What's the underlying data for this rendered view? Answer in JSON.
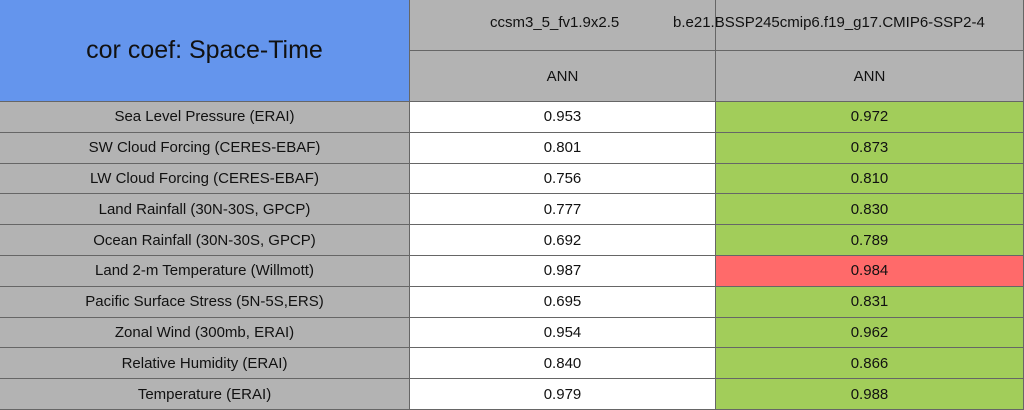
{
  "header": {
    "title": "cor coef: Space-Time",
    "columns": [
      {
        "name": "ccsm3_5_fv1.9x2.5",
        "period": "ANN"
      },
      {
        "name": "b.e21.BSSP245cmip6.f19_g17.CMIP6-SSP2-4",
        "period": "ANN"
      }
    ]
  },
  "table": {
    "rows": [
      {
        "label": "Sea Level Pressure (ERAI)",
        "values": [
          "0.953",
          "0.972"
        ],
        "colors": [
          "#ffffff",
          "#a2cd5a"
        ]
      },
      {
        "label": "SW Cloud Forcing (CERES-EBAF)",
        "values": [
          "0.801",
          "0.873"
        ],
        "colors": [
          "#ffffff",
          "#a2cd5a"
        ]
      },
      {
        "label": "LW Cloud Forcing (CERES-EBAF)",
        "values": [
          "0.756",
          "0.810"
        ],
        "colors": [
          "#ffffff",
          "#a2cd5a"
        ]
      },
      {
        "label": "Land Rainfall (30N-30S, GPCP)",
        "values": [
          "0.777",
          "0.830"
        ],
        "colors": [
          "#ffffff",
          "#a2cd5a"
        ]
      },
      {
        "label": "Ocean Rainfall (30N-30S, GPCP)",
        "values": [
          "0.692",
          "0.789"
        ],
        "colors": [
          "#ffffff",
          "#a2cd5a"
        ]
      },
      {
        "label": "Land 2-m Temperature (Willmott)",
        "values": [
          "0.987",
          "0.984"
        ],
        "colors": [
          "#ffffff",
          "#ff6a6a"
        ]
      },
      {
        "label": "Pacific Surface Stress (5N-5S,ERS)",
        "values": [
          "0.695",
          "0.831"
        ],
        "colors": [
          "#ffffff",
          "#a2cd5a"
        ]
      },
      {
        "label": "Zonal Wind (300mb, ERAI)",
        "values": [
          "0.954",
          "0.962"
        ],
        "colors": [
          "#ffffff",
          "#a2cd5a"
        ]
      },
      {
        "label": "Relative Humidity (ERAI)",
        "values": [
          "0.840",
          "0.866"
        ],
        "colors": [
          "#ffffff",
          "#a2cd5a"
        ]
      },
      {
        "label": "Temperature (ERAI)",
        "values": [
          "0.979",
          "0.988"
        ],
        "colors": [
          "#ffffff",
          "#a2cd5a"
        ]
      }
    ]
  }
}
